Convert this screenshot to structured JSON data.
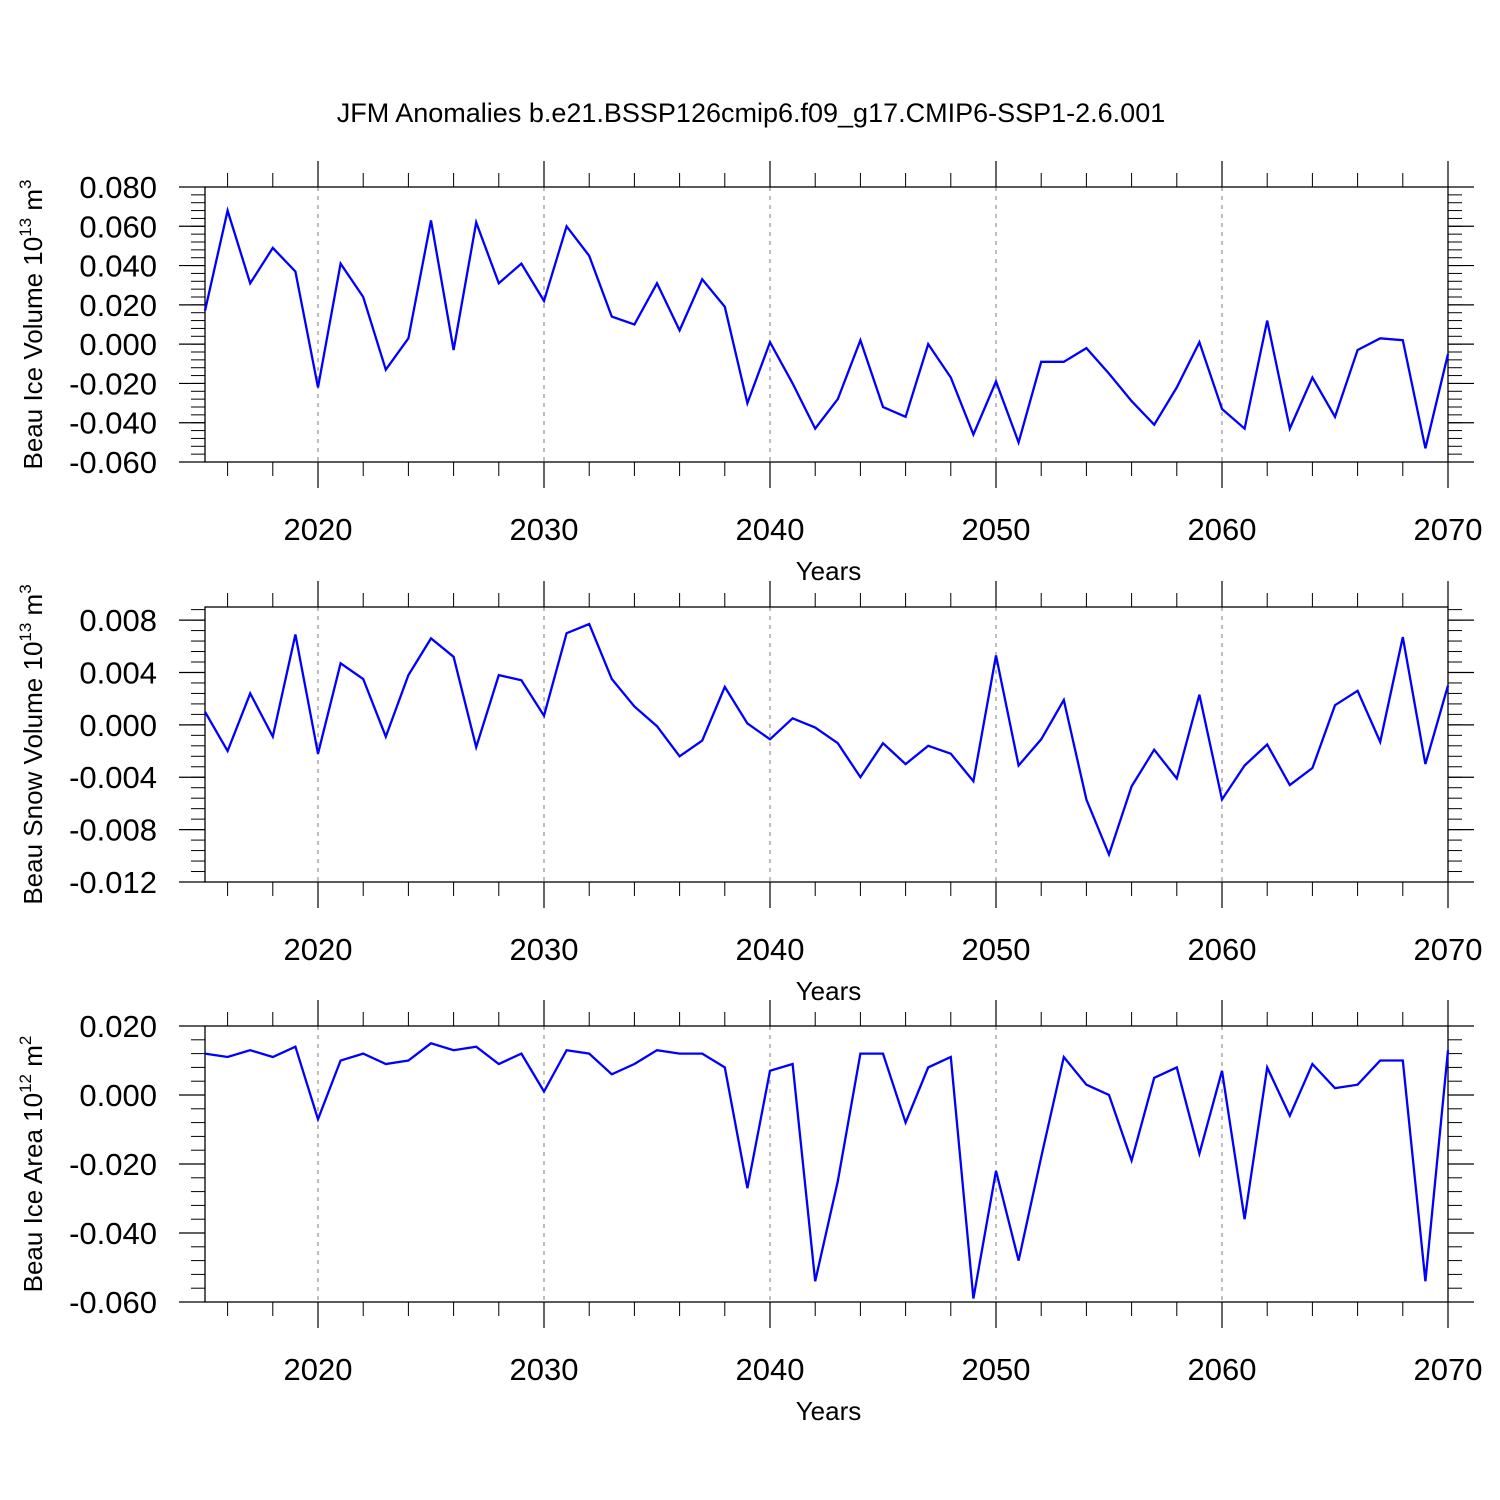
{
  "title": "JFM Anomalies b.e21.BSSP126cmip6.f09_g17.CMIP6-SSP1-2.6.001",
  "line_color": "#0000ff",
  "chart_data": [
    {
      "type": "line",
      "title": "",
      "xlabel": "Years",
      "ylabel_parts": [
        "Beau Ice Volume 10",
        "13",
        " m",
        "3"
      ],
      "xlim": [
        2015,
        2070
      ],
      "ylim": [
        -0.06,
        0.08
      ],
      "yticks": [
        0.08,
        0.06,
        0.04,
        0.02,
        0.0,
        -0.02,
        -0.04,
        -0.06
      ],
      "ytick_labels": [
        "0.080",
        "0.060",
        "0.040",
        "0.020",
        "0.000",
        "-0.020",
        "-0.040",
        "-0.060"
      ],
      "xticks": [
        2020,
        2030,
        2040,
        2050,
        2060,
        2070
      ],
      "xtick_labels": [
        "2020",
        "2030",
        "2040",
        "2050",
        "2060",
        "2070"
      ],
      "grid": "vertical dashed at major x ticks",
      "series": [
        {
          "name": "Beau Ice Volume",
          "x": [
            2015,
            2016,
            2017,
            2018,
            2019,
            2020,
            2021,
            2022,
            2023,
            2024,
            2025,
            2026,
            2027,
            2028,
            2029,
            2030,
            2031,
            2032,
            2033,
            2034,
            2035,
            2036,
            2037,
            2038,
            2039,
            2040,
            2041,
            2042,
            2043,
            2044,
            2045,
            2046,
            2047,
            2048,
            2049,
            2050,
            2051,
            2052,
            2053,
            2054,
            2055,
            2056,
            2057,
            2058,
            2059,
            2060,
            2061,
            2062,
            2063,
            2064,
            2065,
            2066,
            2067,
            2068,
            2069,
            2070
          ],
          "values": [
            0.017,
            0.068,
            0.031,
            0.049,
            0.037,
            -0.022,
            0.041,
            0.024,
            -0.013,
            0.003,
            0.063,
            -0.003,
            0.062,
            0.031,
            0.041,
            0.022,
            0.06,
            0.045,
            0.014,
            0.01,
            0.031,
            0.007,
            0.033,
            0.019,
            -0.03,
            0.001,
            -0.02,
            -0.043,
            -0.028,
            0.002,
            -0.032,
            -0.037,
            0.0,
            -0.017,
            -0.046,
            -0.019,
            -0.05,
            -0.009,
            -0.009,
            -0.002,
            -0.015,
            -0.029,
            -0.041,
            -0.022,
            0.001,
            -0.033,
            -0.043,
            0.012,
            -0.043,
            -0.017,
            -0.037,
            -0.003,
            0.003,
            0.002,
            -0.053,
            -0.005
          ]
        }
      ]
    },
    {
      "type": "line",
      "title": "",
      "xlabel": "Years",
      "ylabel_parts": [
        "Beau Snow Volume 10",
        "13",
        " m",
        "3"
      ],
      "xlim": [
        2015,
        2070
      ],
      "ylim": [
        -0.012,
        0.009
      ],
      "yticks": [
        0.008,
        0.004,
        0.0,
        -0.004,
        -0.008,
        -0.012
      ],
      "ytick_labels": [
        "0.008",
        "0.004",
        "0.000",
        "-0.004",
        "-0.008",
        "-0.012"
      ],
      "xticks": [
        2020,
        2030,
        2040,
        2050,
        2060,
        2070
      ],
      "xtick_labels": [
        "2020",
        "2030",
        "2040",
        "2050",
        "2060",
        "2070"
      ],
      "grid": "vertical dashed at major x ticks",
      "series": [
        {
          "name": "Beau Snow Volume",
          "x": [
            2015,
            2016,
            2017,
            2018,
            2019,
            2020,
            2021,
            2022,
            2023,
            2024,
            2025,
            2026,
            2027,
            2028,
            2029,
            2030,
            2031,
            2032,
            2033,
            2034,
            2035,
            2036,
            2037,
            2038,
            2039,
            2040,
            2041,
            2042,
            2043,
            2044,
            2045,
            2046,
            2047,
            2048,
            2049,
            2050,
            2051,
            2052,
            2053,
            2054,
            2055,
            2056,
            2057,
            2058,
            2059,
            2060,
            2061,
            2062,
            2063,
            2064,
            2065,
            2066,
            2067,
            2068,
            2069,
            2070
          ],
          "values": [
            0.001,
            -0.002,
            0.0024,
            -0.0009,
            0.0069,
            -0.0022,
            0.0047,
            0.0035,
            -0.0009,
            0.0038,
            0.0066,
            0.0052,
            -0.0017,
            0.0038,
            0.0034,
            0.0007,
            0.007,
            0.0077,
            0.0035,
            0.0014,
            -0.0001,
            -0.0024,
            -0.0012,
            0.0029,
            0.0001,
            -0.0011,
            0.0005,
            -0.0002,
            -0.0014,
            -0.004,
            -0.0014,
            -0.003,
            -0.0016,
            -0.0022,
            -0.0043,
            0.0053,
            -0.0031,
            -0.0011,
            0.0019,
            -0.0057,
            -0.0099,
            -0.0047,
            -0.0019,
            -0.0041,
            0.0023,
            -0.0057,
            -0.0031,
            -0.0015,
            -0.0046,
            -0.0033,
            0.0015,
            0.0026,
            -0.0013,
            0.0067,
            -0.003,
            0.003
          ]
        }
      ]
    },
    {
      "type": "line",
      "title": "",
      "xlabel": "Years",
      "ylabel_parts": [
        "Beau Ice Area 10",
        "12",
        " m",
        "2"
      ],
      "xlim": [
        2015,
        2070
      ],
      "ylim": [
        -0.06,
        0.02
      ],
      "yticks": [
        0.02,
        0.0,
        -0.02,
        -0.04,
        -0.06
      ],
      "ytick_labels": [
        "0.020",
        "0.000",
        "-0.020",
        "-0.040",
        "-0.060"
      ],
      "xticks": [
        2020,
        2030,
        2040,
        2050,
        2060,
        2070
      ],
      "xtick_labels": [
        "2020",
        "2030",
        "2040",
        "2050",
        "2060",
        "2070"
      ],
      "grid": "vertical dashed at major x ticks",
      "series": [
        {
          "name": "Beau Ice Area",
          "x": [
            2015,
            2016,
            2017,
            2018,
            2019,
            2020,
            2021,
            2022,
            2023,
            2024,
            2025,
            2026,
            2027,
            2028,
            2029,
            2030,
            2031,
            2032,
            2033,
            2034,
            2035,
            2036,
            2037,
            2038,
            2039,
            2040,
            2041,
            2042,
            2043,
            2044,
            2045,
            2046,
            2047,
            2048,
            2049,
            2050,
            2051,
            2052,
            2053,
            2054,
            2055,
            2056,
            2057,
            2058,
            2059,
            2060,
            2061,
            2062,
            2063,
            2064,
            2065,
            2066,
            2067,
            2068,
            2069,
            2070
          ],
          "values": [
            0.012,
            0.011,
            0.013,
            0.011,
            0.014,
            -0.007,
            0.01,
            0.012,
            0.009,
            0.01,
            0.015,
            0.013,
            0.014,
            0.009,
            0.012,
            0.001,
            0.013,
            0.012,
            0.006,
            0.009,
            0.013,
            0.012,
            0.012,
            0.008,
            -0.027,
            0.007,
            0.009,
            -0.054,
            -0.025,
            0.012,
            0.012,
            -0.008,
            0.008,
            0.011,
            -0.059,
            -0.022,
            -0.048,
            -0.018,
            0.011,
            0.003,
            0.0,
            -0.019,
            0.005,
            0.008,
            -0.017,
            0.007,
            -0.036,
            0.008,
            -0.006,
            0.009,
            0.002,
            0.003,
            0.01,
            0.01,
            -0.054,
            0.013
          ]
        }
      ]
    }
  ]
}
